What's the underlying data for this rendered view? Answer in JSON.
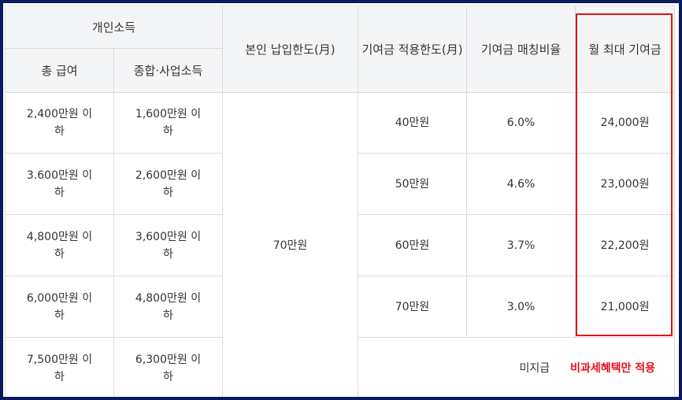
{
  "headers": {
    "personal_income": "개인소득",
    "total_salary": "총 급여",
    "combined_business_income": "종합·사업소득",
    "own_payment_limit": "본인 납입한도(月)",
    "contribution_limit": "기여금 적용한도(月)",
    "matching_ratio": "기여금 매칭비율",
    "max_monthly_contribution": "월 최대 기여금"
  },
  "own_payment_value": "70만원",
  "rows": [
    {
      "salary": "2,400만원 이하",
      "business": "1,600만원 이하",
      "limit": "40만원",
      "ratio": "6.0%",
      "max": "24,000원"
    },
    {
      "salary": "3.600만원 이하",
      "business": "2,600만원 이하",
      "limit": "50만원",
      "ratio": "4.6%",
      "max": "23,000원"
    },
    {
      "salary": "4,800만원 이하",
      "business": "3,600만원 이하",
      "limit": "60만원",
      "ratio": "3.7%",
      "max": "22,200원"
    },
    {
      "salary": "6,000만원 이하",
      "business": "4,800만원 이하",
      "limit": "70만원",
      "ratio": "3.0%",
      "max": "21,000원"
    }
  ],
  "last_row": {
    "salary": "7,500만원 이하",
    "business": "6,300만원 이하",
    "status": "미지급",
    "note": "비과세혜택만 적용"
  },
  "colors": {
    "background_frame": "#0b1a5c",
    "header_bg": "#f4f5f7",
    "highlight_border": "#e0141c",
    "note_text": "#e8121b"
  }
}
